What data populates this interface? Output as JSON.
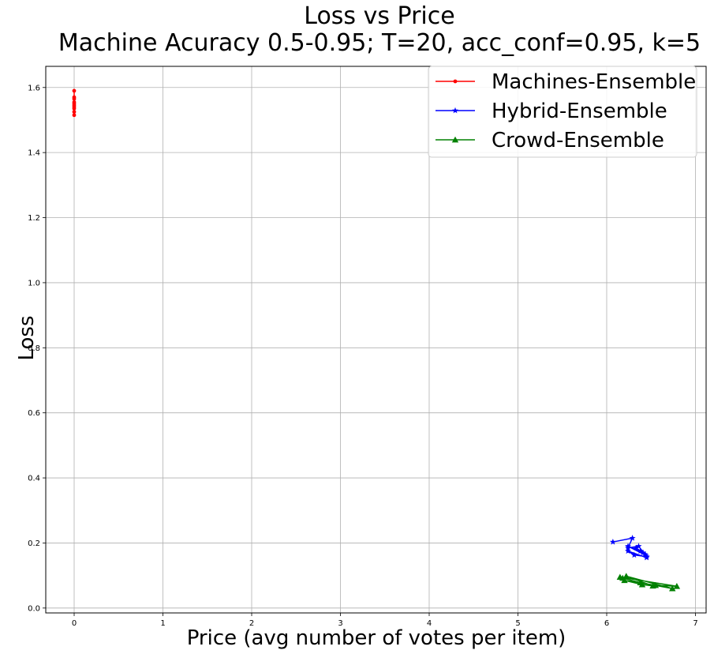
{
  "chart_data": {
    "type": "line",
    "title": "Loss vs Price",
    "subtitle": "Machine Acuracy 0.5-0.95; T=20, acc_conf=0.95, k=5",
    "xlabel": "Price (avg number of votes per item)",
    "ylabel": "Loss",
    "xlim": [
      -0.32,
      7.12
    ],
    "ylim": [
      -0.015,
      1.665
    ],
    "xticks": [
      "0",
      "1",
      "2",
      "3",
      "4",
      "5",
      "6",
      "7"
    ],
    "yticks": [
      "0.0",
      "0.2",
      "0.4",
      "0.6",
      "0.8",
      "1.0",
      "1.2",
      "1.4",
      "1.6"
    ],
    "grid": true,
    "legend_position": "top-right",
    "series": [
      {
        "name": "Machines-Ensemble",
        "color": "#ff0000",
        "marker": "point",
        "x": [
          0,
          0,
          0,
          0,
          0,
          0,
          0,
          0,
          0,
          0
        ],
        "y": [
          1.59,
          1.57,
          1.565,
          1.555,
          1.55,
          1.545,
          1.54,
          1.535,
          1.525,
          1.515
        ]
      },
      {
        "name": "Hybrid-Ensemble",
        "color": "#0000ff",
        "marker": "star",
        "x": [
          6.07,
          6.29,
          6.24,
          6.36,
          6.43,
          6.45,
          6.24,
          6.31,
          6.45,
          6.38,
          6.24,
          6.44,
          6.33,
          6.41
        ],
        "y": [
          0.203,
          0.215,
          0.185,
          0.19,
          0.165,
          0.155,
          0.175,
          0.163,
          0.158,
          0.175,
          0.19,
          0.162,
          0.185,
          0.17
        ]
      },
      {
        "name": "Crowd-Ensemble",
        "color": "#008000",
        "marker": "triangle",
        "x": [
          6.15,
          6.79,
          6.55,
          6.2,
          6.4,
          6.52,
          6.22,
          6.74,
          6.38,
          6.18
        ],
        "y": [
          0.095,
          0.067,
          0.07,
          0.085,
          0.072,
          0.068,
          0.098,
          0.06,
          0.078,
          0.092
        ]
      }
    ]
  }
}
